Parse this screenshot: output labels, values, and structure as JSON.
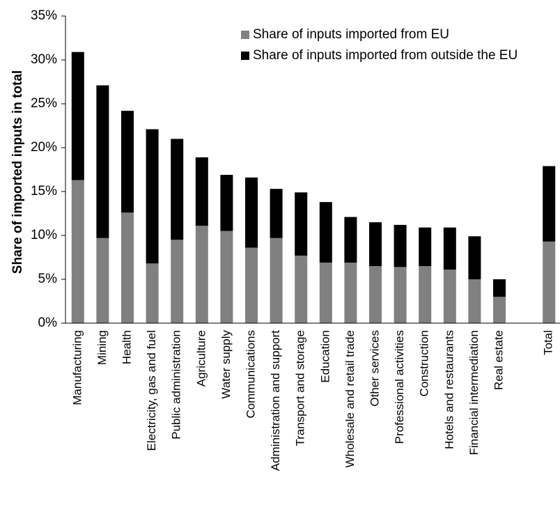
{
  "chart_data": {
    "type": "bar",
    "stacked": true,
    "title": "",
    "xlabel": "",
    "ylabel": "Share of imported inputs in total",
    "ylim": [
      0,
      35
    ],
    "y_unit": "%",
    "yticks": [
      "0%",
      "5%",
      "10%",
      "15%",
      "20%",
      "25%",
      "30%",
      "35%"
    ],
    "grid": false,
    "legend_position": "top-right",
    "categories": [
      "Manufacturing",
      "Mining",
      "Health",
      "Electricity, gas and fuel",
      "Public administration",
      "Agriculture",
      "Water supply",
      "Communications",
      "Administration and support",
      "Transport and storage",
      "Education",
      "Wholesale and retail trade",
      "Other services",
      "Professional activities",
      "Construction",
      "Hotels and restaurants",
      "Financial intermediation",
      "Real estate",
      "",
      "Total"
    ],
    "series": [
      {
        "name": "Share of inputs imported from EU",
        "color": "#808080",
        "values": [
          16.3,
          9.7,
          12.6,
          6.8,
          9.5,
          11.1,
          10.5,
          8.6,
          9.7,
          7.7,
          6.9,
          6.9,
          6.5,
          6.4,
          6.5,
          6.1,
          5.0,
          3.0,
          null,
          9.3
        ]
      },
      {
        "name": "Share of inputs imported from outside the EU",
        "color": "#000000",
        "values": [
          14.6,
          17.4,
          11.6,
          15.3,
          11.5,
          7.8,
          6.4,
          8.0,
          5.6,
          7.2,
          6.9,
          5.2,
          5.0,
          4.8,
          4.4,
          4.8,
          4.9,
          2.0,
          null,
          8.6
        ]
      }
    ]
  }
}
